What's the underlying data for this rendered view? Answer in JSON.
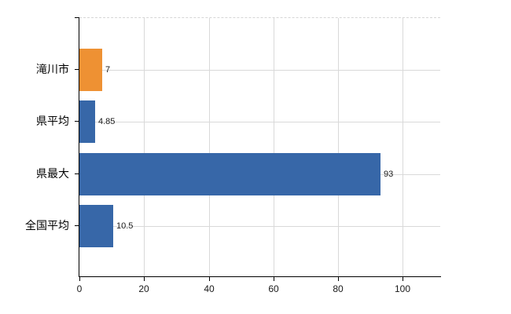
{
  "chart_data": {
    "type": "bar",
    "orientation": "horizontal",
    "categories": [
      "滝川市",
      "県平均",
      "県最大",
      "全国平均"
    ],
    "values": [
      7,
      4.85,
      93,
      10.5
    ],
    "value_labels": [
      "7",
      "4.85",
      "93",
      "10.5"
    ],
    "series_colors": [
      "#EE9133",
      "#3767A8",
      "#3767A8",
      "#3767A8"
    ],
    "x_ticks": [
      0,
      20,
      40,
      60,
      80,
      100
    ],
    "x_tick_labels": [
      "0",
      "20",
      "40",
      "60",
      "80",
      "100"
    ],
    "xlim": [
      0,
      111.6
    ],
    "grid": "on",
    "legend": "none"
  },
  "colors": {
    "bar_blue": "#3767A8",
    "bar_orange": "#EE9133",
    "gridline": "#d9d9d9",
    "axis": "#000000",
    "text": "#1a1a1a",
    "background": "#ffffff"
  }
}
